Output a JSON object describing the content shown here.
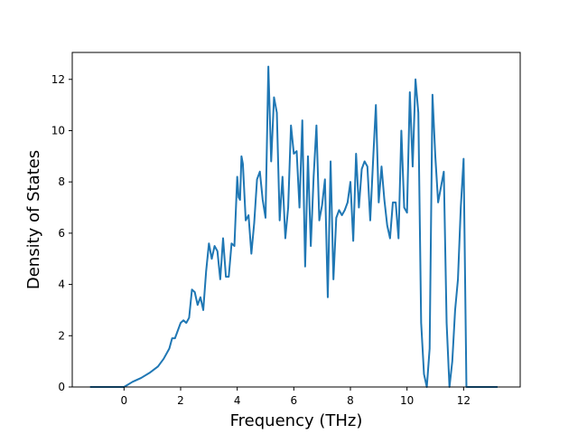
{
  "chart_data": {
    "type": "line",
    "title": "",
    "xlabel": "Frequency (THz)",
    "ylabel": "Density of States",
    "xlim": [
      -1.83,
      14.0
    ],
    "ylim": [
      0,
      13.05
    ],
    "xticks": [
      0,
      2,
      4,
      6,
      8,
      10,
      12
    ],
    "yticks": [
      0,
      2,
      4,
      6,
      8,
      10,
      12
    ],
    "grid": false,
    "legend": "none",
    "series": [
      {
        "color": "#1f77b4",
        "x": [
          -1.2,
          0.0,
          0.3,
          0.6,
          0.9,
          1.2,
          1.4,
          1.6,
          1.7,
          1.8,
          1.9,
          2.0,
          2.1,
          2.2,
          2.3,
          2.4,
          2.5,
          2.6,
          2.7,
          2.8,
          2.9,
          3.0,
          3.1,
          3.2,
          3.3,
          3.4,
          3.5,
          3.6,
          3.7,
          3.8,
          3.9,
          4.0,
          4.05,
          4.1,
          4.15,
          4.2,
          4.3,
          4.4,
          4.5,
          4.6,
          4.7,
          4.8,
          4.9,
          5.0,
          5.1,
          5.2,
          5.3,
          5.4,
          5.5,
          5.6,
          5.7,
          5.8,
          5.9,
          6.0,
          6.1,
          6.2,
          6.3,
          6.4,
          6.5,
          6.6,
          6.7,
          6.8,
          6.9,
          7.0,
          7.1,
          7.2,
          7.3,
          7.4,
          7.5,
          7.6,
          7.7,
          7.8,
          7.9,
          8.0,
          8.1,
          8.2,
          8.3,
          8.4,
          8.5,
          8.6,
          8.7,
          8.8,
          8.9,
          9.0,
          9.1,
          9.2,
          9.3,
          9.4,
          9.5,
          9.6,
          9.7,
          9.8,
          9.9,
          10.0,
          10.1,
          10.2,
          10.3,
          10.4,
          10.5,
          10.6,
          10.7,
          10.8,
          10.9,
          11.0,
          11.1,
          11.2,
          11.3,
          11.4,
          11.5,
          11.6,
          11.7,
          11.8,
          11.9,
          12.0,
          12.1,
          12.3,
          13.2
        ],
        "y": [
          0,
          0,
          0.2,
          0.35,
          0.55,
          0.8,
          1.1,
          1.5,
          1.9,
          1.9,
          2.2,
          2.5,
          2.6,
          2.5,
          2.7,
          3.8,
          3.7,
          3.2,
          3.5,
          3.0,
          4.5,
          5.6,
          5.0,
          5.5,
          5.3,
          4.2,
          5.8,
          4.3,
          4.3,
          5.6,
          5.5,
          8.2,
          7.4,
          7.3,
          9.0,
          8.7,
          6.5,
          6.7,
          5.2,
          6.4,
          8.1,
          8.4,
          7.3,
          6.6,
          12.5,
          8.8,
          11.3,
          10.7,
          6.5,
          8.2,
          5.8,
          7.0,
          10.2,
          9.1,
          9.2,
          7.0,
          10.4,
          4.7,
          9.0,
          5.5,
          8.2,
          10.2,
          6.5,
          7.1,
          8.1,
          3.5,
          8.8,
          4.2,
          6.6,
          6.9,
          6.7,
          6.9,
          7.2,
          8.0,
          5.7,
          9.1,
          7.0,
          8.5,
          8.8,
          8.6,
          6.5,
          8.8,
          11.0,
          7.2,
          8.6,
          7.3,
          6.3,
          5.8,
          7.2,
          7.2,
          5.8,
          10.0,
          7.0,
          6.8,
          11.5,
          8.6,
          12.0,
          10.7,
          2.5,
          0.5,
          0,
          1.5,
          11.4,
          9.0,
          7.2,
          7.8,
          8.4,
          2.5,
          0,
          1.0,
          3.0,
          4.2,
          7.0,
          8.9,
          0,
          0,
          0
        ]
      }
    ]
  }
}
